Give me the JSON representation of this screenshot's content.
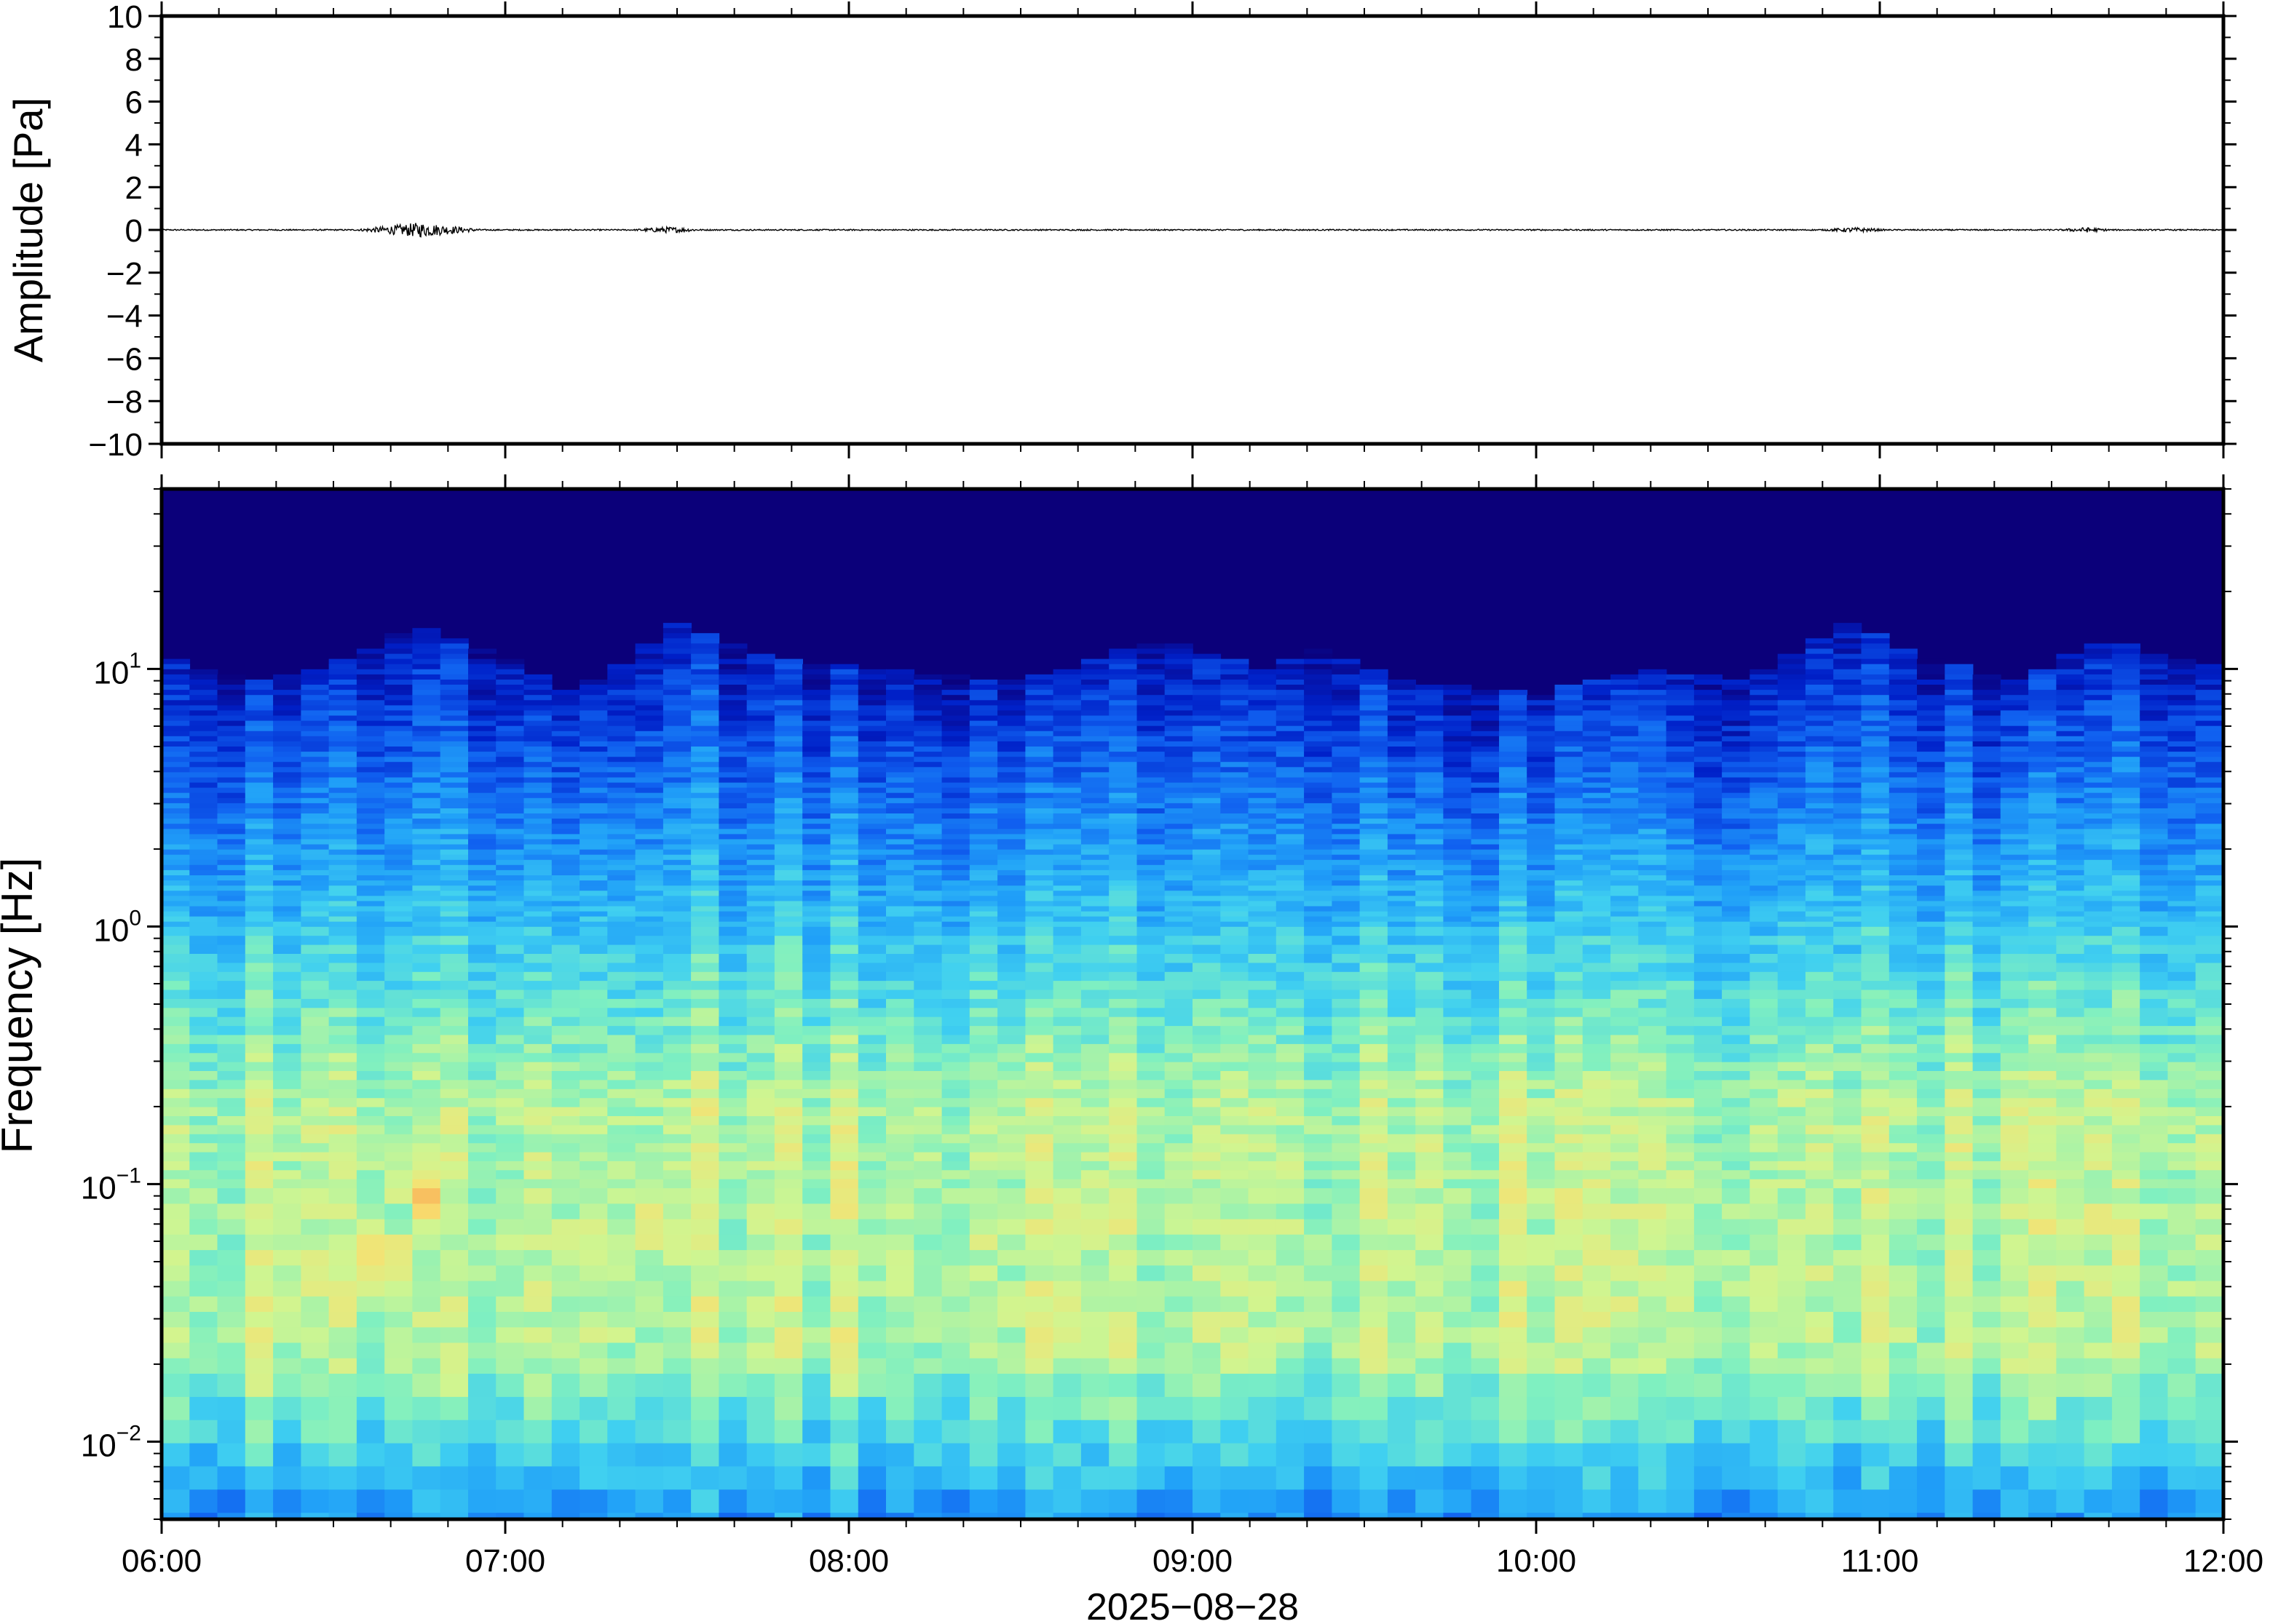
{
  "chart_data": [
    {
      "type": "line",
      "panel": "waveform",
      "ylabel": "Amplitude [Pa]",
      "ylim": [
        -10,
        10
      ],
      "yticks": [
        10,
        8,
        6,
        4,
        2,
        0,
        -2,
        -4,
        -6,
        -8,
        -10
      ],
      "ytick_labels": [
        "10",
        "8",
        "6",
        "4",
        "2",
        "0",
        "−2",
        "−4",
        "−6",
        "−8",
        "−10"
      ],
      "xlim_hours": [
        6,
        12
      ],
      "baseline": 0,
      "typical_noise_amplitude": 0.03,
      "bursts": [
        {
          "start_hour": 6.55,
          "end_hour": 6.95,
          "amplitude": 0.35
        },
        {
          "start_hour": 7.35,
          "end_hour": 7.6,
          "amplitude": 0.15
        },
        {
          "start_hour": 10.8,
          "end_hour": 11.05,
          "amplitude": 0.12
        },
        {
          "start_hour": 11.5,
          "end_hour": 11.7,
          "amplitude": 0.12
        }
      ],
      "line_color": "#000000",
      "grid": false
    },
    {
      "type": "heatmap",
      "panel": "spectrogram",
      "ylabel": "Frequency [Hz]",
      "yscale": "log",
      "ylim": [
        0.005,
        50
      ],
      "yticks": [
        {
          "value": 10,
          "base": "10",
          "exp": "1"
        },
        {
          "value": 1,
          "base": "10",
          "exp": "0"
        },
        {
          "value": 0.1,
          "base": "10",
          "exp": "−1"
        },
        {
          "value": 0.01,
          "base": "10",
          "exp": "−2"
        }
      ],
      "xlabel": "2025−08−28",
      "xlim_hours": [
        6,
        12
      ],
      "xticks": [
        {
          "hour": 6,
          "label": "06:00"
        },
        {
          "hour": 7,
          "label": "07:00"
        },
        {
          "hour": 8,
          "label": "08:00"
        },
        {
          "hour": 9,
          "label": "09:00"
        },
        {
          "hour": 10,
          "label": "10:00"
        },
        {
          "hour": 11,
          "label": "11:00"
        },
        {
          "hour": 12,
          "label": "12:00"
        }
      ],
      "colormap": [
        "#0b007a",
        "#0020c8",
        "#1060f0",
        "#20a0f8",
        "#40d0f0",
        "#80f0c0",
        "#d0f590",
        "#f8e070",
        "#f8a050"
      ],
      "background_color": "#0b007a",
      "noise_ceiling_hz": [
        {
          "hour": 6.0,
          "hz": 11
        },
        {
          "hour": 6.3,
          "hz": 9
        },
        {
          "hour": 6.55,
          "hz": 11
        },
        {
          "hour": 6.75,
          "hz": 15
        },
        {
          "hour": 7.0,
          "hz": 11
        },
        {
          "hour": 7.2,
          "hz": 8
        },
        {
          "hour": 7.5,
          "hz": 15
        },
        {
          "hour": 7.8,
          "hz": 11
        },
        {
          "hour": 8.1,
          "hz": 10
        },
        {
          "hour": 8.5,
          "hz": 9
        },
        {
          "hour": 8.9,
          "hz": 13
        },
        {
          "hour": 9.2,
          "hz": 10
        },
        {
          "hour": 9.35,
          "hz": 12
        },
        {
          "hour": 9.6,
          "hz": 9
        },
        {
          "hour": 10.0,
          "hz": 8
        },
        {
          "hour": 10.3,
          "hz": 10
        },
        {
          "hour": 10.6,
          "hz": 9
        },
        {
          "hour": 10.9,
          "hz": 15
        },
        {
          "hour": 11.15,
          "hz": 11
        },
        {
          "hour": 11.4,
          "hz": 9
        },
        {
          "hour": 11.65,
          "hz": 13
        },
        {
          "hour": 12.0,
          "hz": 10
        }
      ],
      "hotspots": [
        {
          "hour": 6.65,
          "hz": 0.05,
          "level": 0.95
        },
        {
          "hour": 6.75,
          "hz": 0.09,
          "level": 0.9
        },
        {
          "hour": 7.45,
          "hz": 0.07,
          "level": 0.85
        },
        {
          "hour": 11.6,
          "hz": 0.07,
          "level": 0.85
        },
        {
          "hour": 11.2,
          "hz": 0.05,
          "level": 0.75
        }
      ],
      "grid": false
    }
  ]
}
